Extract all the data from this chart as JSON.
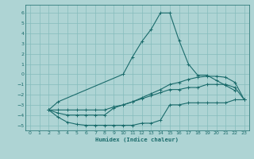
{
  "xlabel": "Humidex (Indice chaleur)",
  "bg_color": "#aed4d4",
  "grid_color": "#85bcbc",
  "line_color": "#1a6b6b",
  "xlim": [
    -0.5,
    23.5
  ],
  "ylim": [
    -5.5,
    6.8
  ],
  "xticks": [
    0,
    1,
    2,
    3,
    4,
    5,
    6,
    7,
    8,
    9,
    10,
    11,
    12,
    13,
    14,
    15,
    16,
    17,
    18,
    19,
    20,
    21,
    22,
    23
  ],
  "yticks": [
    -5,
    -4,
    -3,
    -2,
    -1,
    0,
    1,
    2,
    3,
    4,
    5,
    6
  ],
  "line1_x": [
    2,
    3,
    10,
    11,
    12,
    13,
    14,
    15,
    16,
    17,
    18,
    19,
    20,
    21,
    22
  ],
  "line1_y": [
    -3.5,
    -2.7,
    0.0,
    1.7,
    3.2,
    4.4,
    6.0,
    6.0,
    3.3,
    1.0,
    -0.1,
    -0.1,
    -0.6,
    -1.1,
    -1.6
  ],
  "line2_x": [
    2,
    3,
    4,
    5,
    6,
    7,
    8,
    9,
    10,
    11,
    12,
    13,
    14,
    15,
    16,
    17,
    18,
    19,
    20,
    21,
    22,
    23
  ],
  "line2_y": [
    -3.5,
    -4.2,
    -4.7,
    -4.9,
    -5.0,
    -5.0,
    -5.0,
    -5.0,
    -5.0,
    -5.0,
    -4.8,
    -4.8,
    -4.5,
    -3.0,
    -3.0,
    -2.8,
    -2.8,
    -2.8,
    -2.8,
    -2.8,
    -2.5,
    -2.5
  ],
  "line3_x": [
    2,
    3,
    4,
    5,
    6,
    7,
    8,
    9,
    10,
    11,
    12,
    13,
    14,
    15,
    16,
    17,
    18,
    19,
    20,
    21,
    22,
    23
  ],
  "line3_y": [
    -3.5,
    -3.8,
    -4.0,
    -4.0,
    -4.0,
    -4.0,
    -4.0,
    -3.3,
    -3.0,
    -2.7,
    -2.4,
    -2.1,
    -1.8,
    -1.5,
    -1.5,
    -1.3,
    -1.3,
    -1.0,
    -1.0,
    -1.0,
    -1.3,
    -2.5
  ],
  "line4_x": [
    2,
    3,
    4,
    5,
    6,
    7,
    8,
    9,
    10,
    11,
    12,
    13,
    14,
    15,
    16,
    17,
    18,
    19,
    20,
    21,
    22,
    23
  ],
  "line4_y": [
    -3.5,
    -3.5,
    -3.5,
    -3.5,
    -3.5,
    -3.5,
    -3.5,
    -3.2,
    -3.0,
    -2.7,
    -2.3,
    -1.9,
    -1.5,
    -1.0,
    -0.8,
    -0.5,
    -0.3,
    -0.2,
    -0.2,
    -0.3,
    -0.8,
    -2.5
  ]
}
